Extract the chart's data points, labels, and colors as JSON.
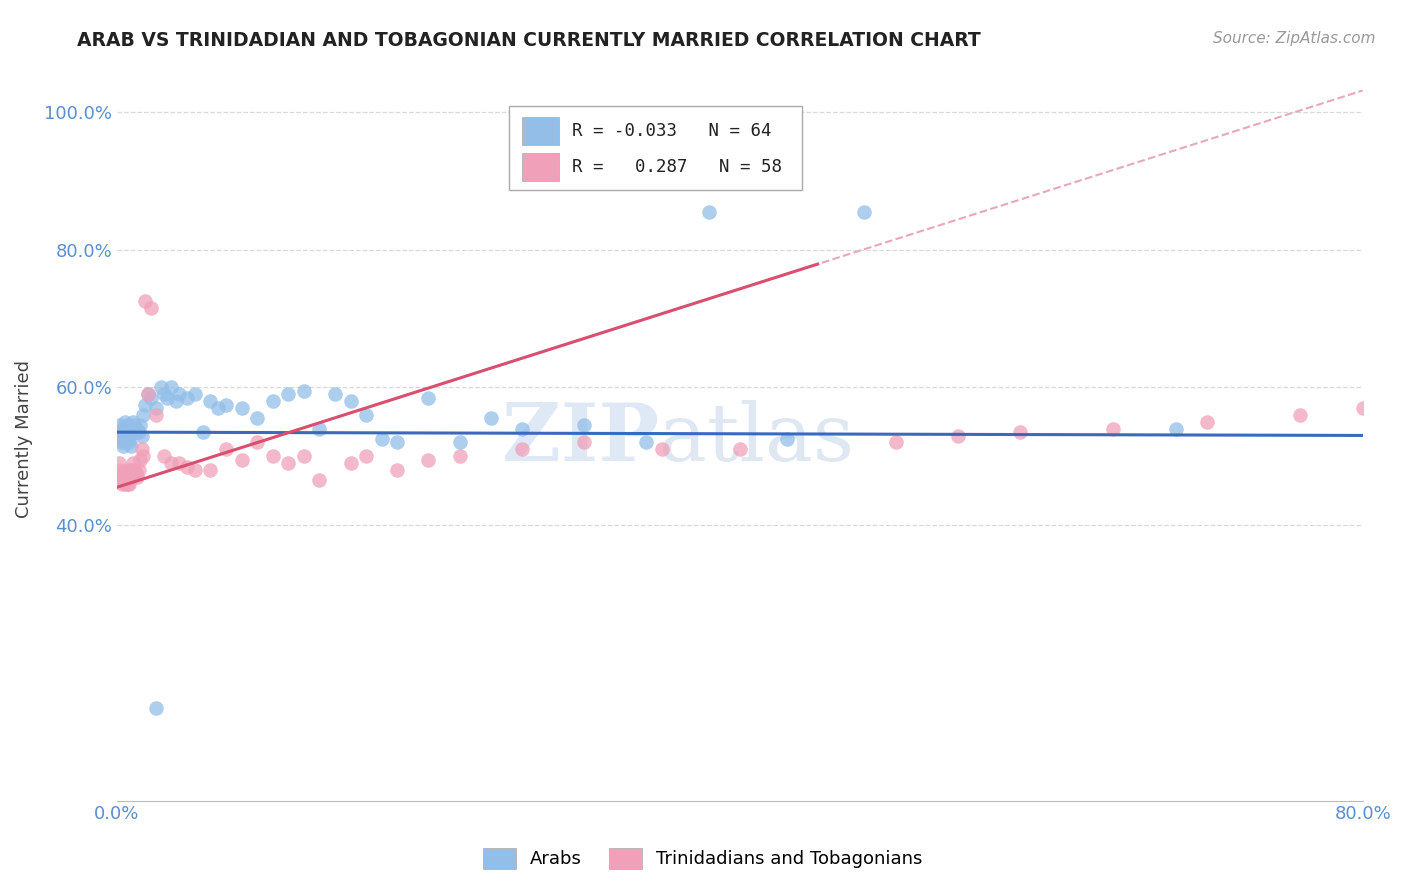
{
  "title": "ARAB VS TRINIDADIAN AND TOBAGONIAN CURRENTLY MARRIED CORRELATION CHART",
  "source": "Source: ZipAtlas.com",
  "ylabel_text": "Currently Married",
  "watermark_zip": "ZIP",
  "watermark_atlas": "atlas",
  "xlim": [
    0.0,
    0.8
  ],
  "ylim": [
    0.0,
    1.05
  ],
  "xticks": [
    0.0,
    0.2,
    0.4,
    0.6,
    0.8
  ],
  "xticklabels": [
    "0.0%",
    "",
    "",
    "",
    "80.0%"
  ],
  "yticks": [
    0.4,
    0.6,
    0.8,
    1.0
  ],
  "yticklabels": [
    "40.0%",
    "60.0%",
    "80.0%",
    "100.0%"
  ],
  "arab_R": "-0.033",
  "arab_N": "64",
  "tnt_R": "0.287",
  "tnt_N": "58",
  "arab_color": "#92bee8",
  "tnt_color": "#f0a0b8",
  "arab_line_color": "#3a6abf",
  "tnt_line_color": "#d94f70",
  "tnt_dashed_color": "#e8a8bc",
  "background_color": "#ffffff",
  "grid_color": "#d0d0d0",
  "axis_color": "#5a8fd0",
  "title_color": "#222222",
  "arab_x": [
    0.001,
    0.002,
    0.002,
    0.003,
    0.003,
    0.004,
    0.004,
    0.005,
    0.005,
    0.006,
    0.006,
    0.007,
    0.007,
    0.008,
    0.008,
    0.009,
    0.009,
    0.01,
    0.01,
    0.011,
    0.012,
    0.013,
    0.014,
    0.015,
    0.016,
    0.017,
    0.018,
    0.02,
    0.022,
    0.025,
    0.028,
    0.03,
    0.032,
    0.035,
    0.038,
    0.04,
    0.045,
    0.05,
    0.055,
    0.06,
    0.065,
    0.07,
    0.08,
    0.09,
    0.1,
    0.11,
    0.12,
    0.13,
    0.14,
    0.15,
    0.16,
    0.17,
    0.18,
    0.2,
    0.22,
    0.24,
    0.26,
    0.3,
    0.34,
    0.38,
    0.43,
    0.48,
    0.68,
    0.025
  ],
  "arab_y": [
    0.535,
    0.545,
    0.525,
    0.54,
    0.52,
    0.535,
    0.515,
    0.55,
    0.52,
    0.54,
    0.53,
    0.545,
    0.525,
    0.54,
    0.52,
    0.535,
    0.515,
    0.55,
    0.54,
    0.545,
    0.535,
    0.54,
    0.535,
    0.545,
    0.53,
    0.56,
    0.575,
    0.59,
    0.585,
    0.57,
    0.6,
    0.59,
    0.585,
    0.6,
    0.58,
    0.59,
    0.585,
    0.59,
    0.535,
    0.58,
    0.57,
    0.575,
    0.57,
    0.555,
    0.58,
    0.59,
    0.595,
    0.54,
    0.59,
    0.58,
    0.56,
    0.525,
    0.52,
    0.585,
    0.52,
    0.555,
    0.54,
    0.545,
    0.52,
    0.855,
    0.525,
    0.855,
    0.54,
    0.135
  ],
  "tnt_x": [
    0.001,
    0.002,
    0.002,
    0.003,
    0.003,
    0.004,
    0.004,
    0.005,
    0.005,
    0.006,
    0.006,
    0.007,
    0.007,
    0.008,
    0.008,
    0.009,
    0.01,
    0.01,
    0.011,
    0.012,
    0.013,
    0.014,
    0.015,
    0.016,
    0.017,
    0.018,
    0.02,
    0.022,
    0.025,
    0.03,
    0.035,
    0.04,
    0.045,
    0.05,
    0.06,
    0.07,
    0.08,
    0.09,
    0.1,
    0.11,
    0.12,
    0.13,
    0.15,
    0.16,
    0.18,
    0.2,
    0.22,
    0.26,
    0.3,
    0.35,
    0.4,
    0.5,
    0.54,
    0.58,
    0.64,
    0.7,
    0.76,
    0.8
  ],
  "tnt_y": [
    0.49,
    0.47,
    0.48,
    0.46,
    0.475,
    0.47,
    0.465,
    0.475,
    0.46,
    0.47,
    0.465,
    0.48,
    0.46,
    0.475,
    0.46,
    0.48,
    0.49,
    0.47,
    0.48,
    0.475,
    0.47,
    0.48,
    0.495,
    0.51,
    0.5,
    0.725,
    0.59,
    0.715,
    0.56,
    0.5,
    0.49,
    0.49,
    0.485,
    0.48,
    0.48,
    0.51,
    0.495,
    0.52,
    0.5,
    0.49,
    0.5,
    0.465,
    0.49,
    0.5,
    0.48,
    0.495,
    0.5,
    0.51,
    0.52,
    0.51,
    0.51,
    0.52,
    0.53,
    0.535,
    0.54,
    0.55,
    0.56,
    0.57
  ]
}
